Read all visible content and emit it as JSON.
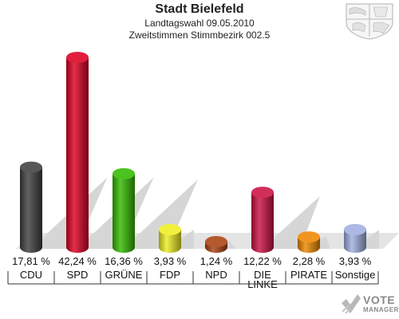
{
  "header": {
    "title": "Stadt Bielefeld",
    "subtitle1": "Landtagswahl 09.05.2010",
    "subtitle2": "Zweitstimmen Stimmbezirk 002.5"
  },
  "logo": {
    "line1": "VOTE",
    "line2": "MANAGER"
  },
  "chart_data": {
    "type": "bar",
    "categories": [
      "CDU",
      "SPD",
      "GRÜNE",
      "FDP",
      "NPD",
      "DIE LINKE",
      "PIRATE",
      "Sonstige"
    ],
    "values": [
      17.81,
      42.24,
      16.36,
      3.93,
      1.24,
      12.22,
      2.28,
      3.93
    ],
    "value_labels": [
      "17,81 %",
      "42,24 %",
      "16,36 %",
      "3,93 %",
      "1,24 %",
      "12,22 %",
      "2,28 %",
      "3,93 %"
    ],
    "colors": [
      "#404040",
      "#dd0022",
      "#33bb00",
      "#eeee22",
      "#aa4411",
      "#cc1144",
      "#ee8800",
      "#a0b0e0"
    ],
    "ylim": [
      0,
      42.24
    ],
    "grid": false,
    "legend": "none"
  }
}
